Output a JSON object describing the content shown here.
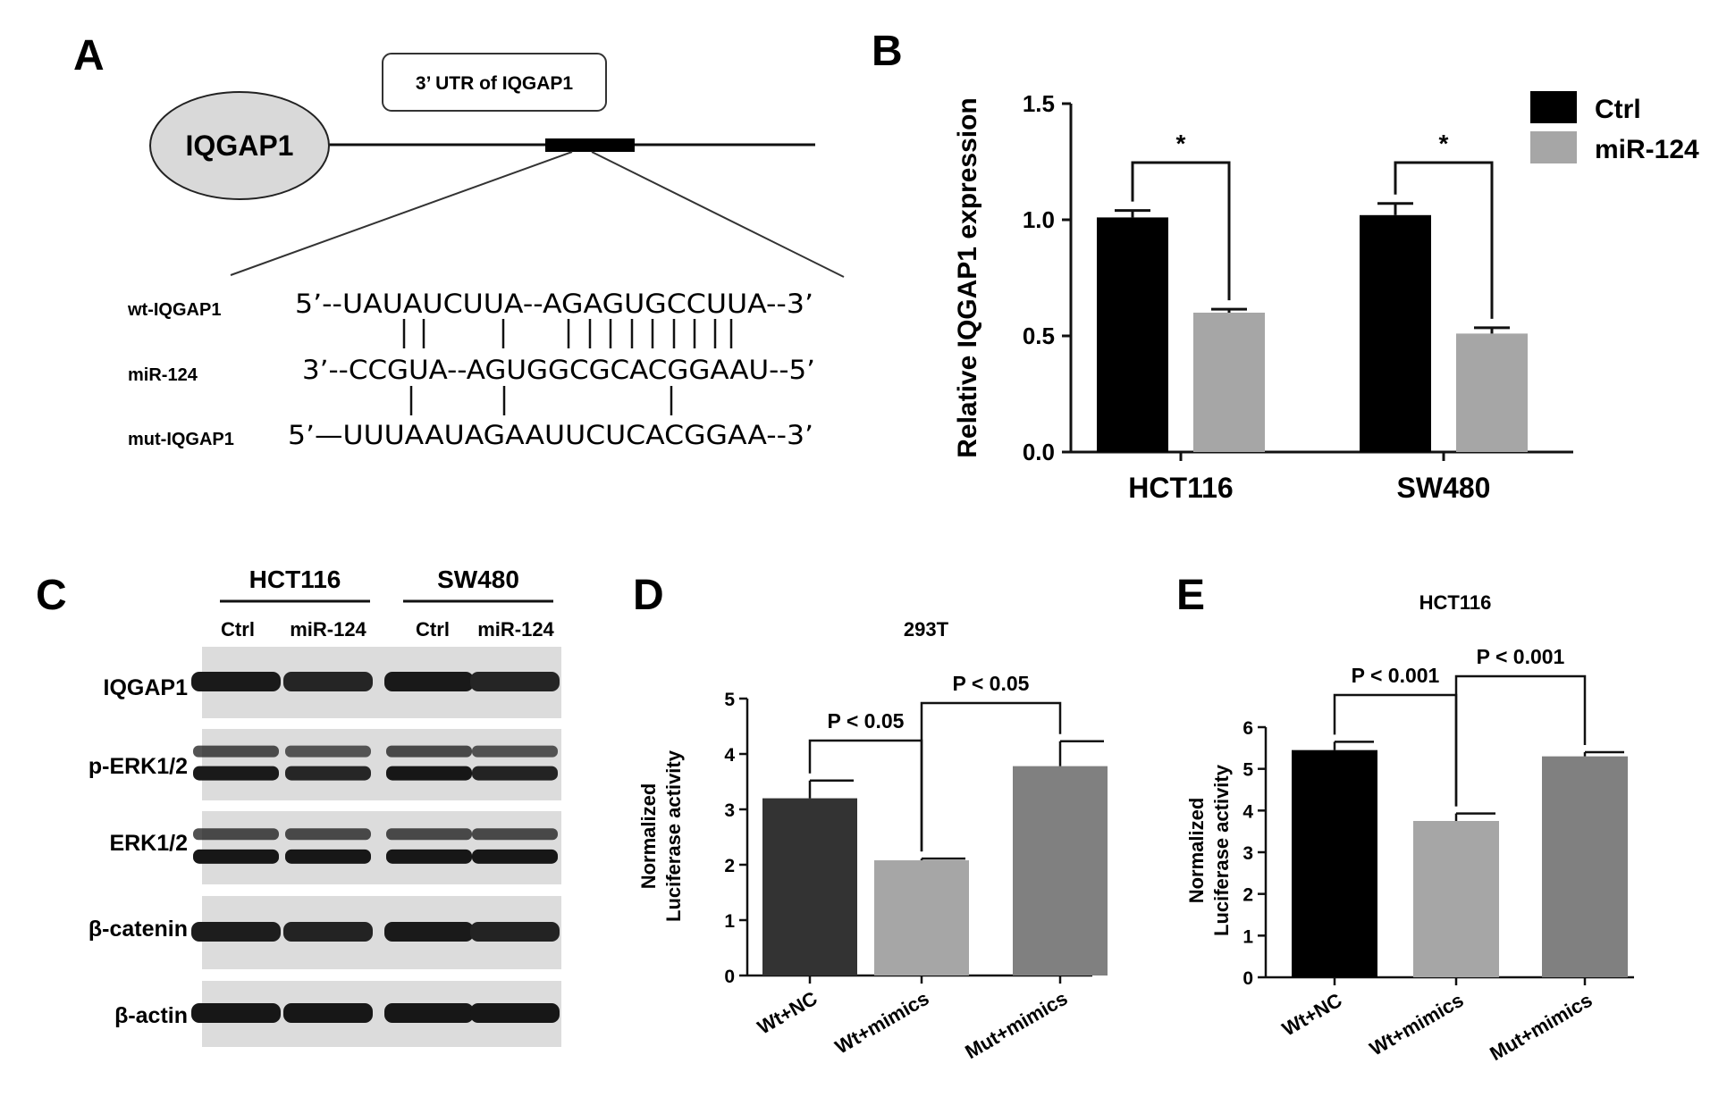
{
  "panels": {
    "a": {
      "letter": "A",
      "gene_label": "IQGAP1",
      "utr_label": "3’ UTR of IQGAP1",
      "sequences": [
        {
          "name": "wt-IQGAP1",
          "seq": "5’--UAUAUCUUA--AGAGUGCCUUA--3’"
        },
        {
          "name": "miR-124",
          "seq": "3’--CCGUA--AGUGGCGCACGGAAU--5’"
        },
        {
          "name": "mut-IQGAP1",
          "seq": "5’—UUUAAUAGAAUUCUCACGGAA--3’"
        }
      ]
    },
    "b": {
      "letter": "B"
    },
    "c": {
      "letter": "C",
      "cell_lines": [
        "HCT116",
        "SW480"
      ],
      "lanes": [
        "Ctrl",
        "miR-124",
        "Ctrl",
        "miR-124"
      ],
      "blots": [
        {
          "label": "IQGAP1",
          "intensities": [
            0.9,
            0.72,
            0.92,
            0.72
          ]
        },
        {
          "label": "p-ERK1/2",
          "intensities": [
            0.9,
            0.7,
            0.95,
            0.75
          ]
        },
        {
          "label": "ERK1/2",
          "intensities": [
            0.95,
            0.95,
            0.95,
            0.95
          ]
        },
        {
          "label": "β-catenin",
          "intensities": [
            0.85,
            0.75,
            0.9,
            0.75
          ]
        },
        {
          "label": "β-actin",
          "intensities": [
            0.95,
            0.95,
            0.95,
            0.95
          ]
        }
      ]
    },
    "d": {
      "letter": "D"
    },
    "e": {
      "letter": "E"
    }
  },
  "colors": {
    "ctrl": "#000000",
    "mir124": "#a6a6a6",
    "d_bars": [
      "#333333",
      "#a6a6a6",
      "#808080"
    ],
    "e_bars": [
      "#000000",
      "#a6a6a6",
      "#808080"
    ]
  },
  "chart_data": [
    {
      "panel": "B",
      "type": "bar",
      "title": "",
      "xlabel": "",
      "ylabel": "Relative IQGAP1 expression",
      "categories": [
        "HCT116",
        "SW480"
      ],
      "series": [
        {
          "name": "Ctrl",
          "values": [
            1.01,
            1.02
          ],
          "errors": [
            0.03,
            0.05
          ]
        },
        {
          "name": "miR-124",
          "values": [
            0.6,
            0.51
          ],
          "errors": [
            0.015,
            0.025
          ]
        }
      ],
      "ylim": [
        0,
        1.5
      ],
      "yticks": [
        0.0,
        0.5,
        1.0,
        1.5
      ],
      "ytick_labels": [
        "0.0",
        "0.5",
        "1.0",
        "1.5"
      ],
      "legend": "top-right",
      "significance": [
        "*",
        "*"
      ]
    },
    {
      "panel": "D",
      "type": "bar",
      "title": "293T",
      "xlabel": "",
      "ylabel_lines": [
        "Normalized",
        "Luciferase activity"
      ],
      "categories": [
        "Wt+NC",
        "Wt+mimics",
        "Mut+mimics"
      ],
      "values": [
        3.2,
        2.08,
        3.78
      ],
      "errors": [
        0.32,
        0.03,
        0.45
      ],
      "ylim": [
        0,
        5
      ],
      "yticks": [
        0,
        1,
        2,
        3,
        4,
        5
      ],
      "ytick_labels": [
        "0",
        "1",
        "2",
        "3",
        "4",
        "5"
      ],
      "brackets": [
        {
          "from": 0,
          "to": 1,
          "label": "P < 0.05"
        },
        {
          "from": 1,
          "to": 2,
          "label": "P < 0.05"
        }
      ]
    },
    {
      "panel": "E",
      "type": "bar",
      "title": "HCT116",
      "xlabel": "",
      "ylabel_lines": [
        "Normalized",
        "Luciferase activity"
      ],
      "categories": [
        "Wt+NC",
        "Wt+mimics",
        "Mut+mimics"
      ],
      "values": [
        5.45,
        3.75,
        5.3
      ],
      "errors": [
        0.2,
        0.18,
        0.1
      ],
      "ylim": [
        0,
        6
      ],
      "yticks": [
        0,
        1,
        2,
        3,
        4,
        5,
        6
      ],
      "ytick_labels": [
        "0",
        "1",
        "2",
        "3",
        "4",
        "5",
        "6"
      ],
      "brackets": [
        {
          "from": 0,
          "to": 1,
          "label": "P < 0.001"
        },
        {
          "from": 1,
          "to": 2,
          "label": "P < 0.001"
        }
      ]
    }
  ]
}
